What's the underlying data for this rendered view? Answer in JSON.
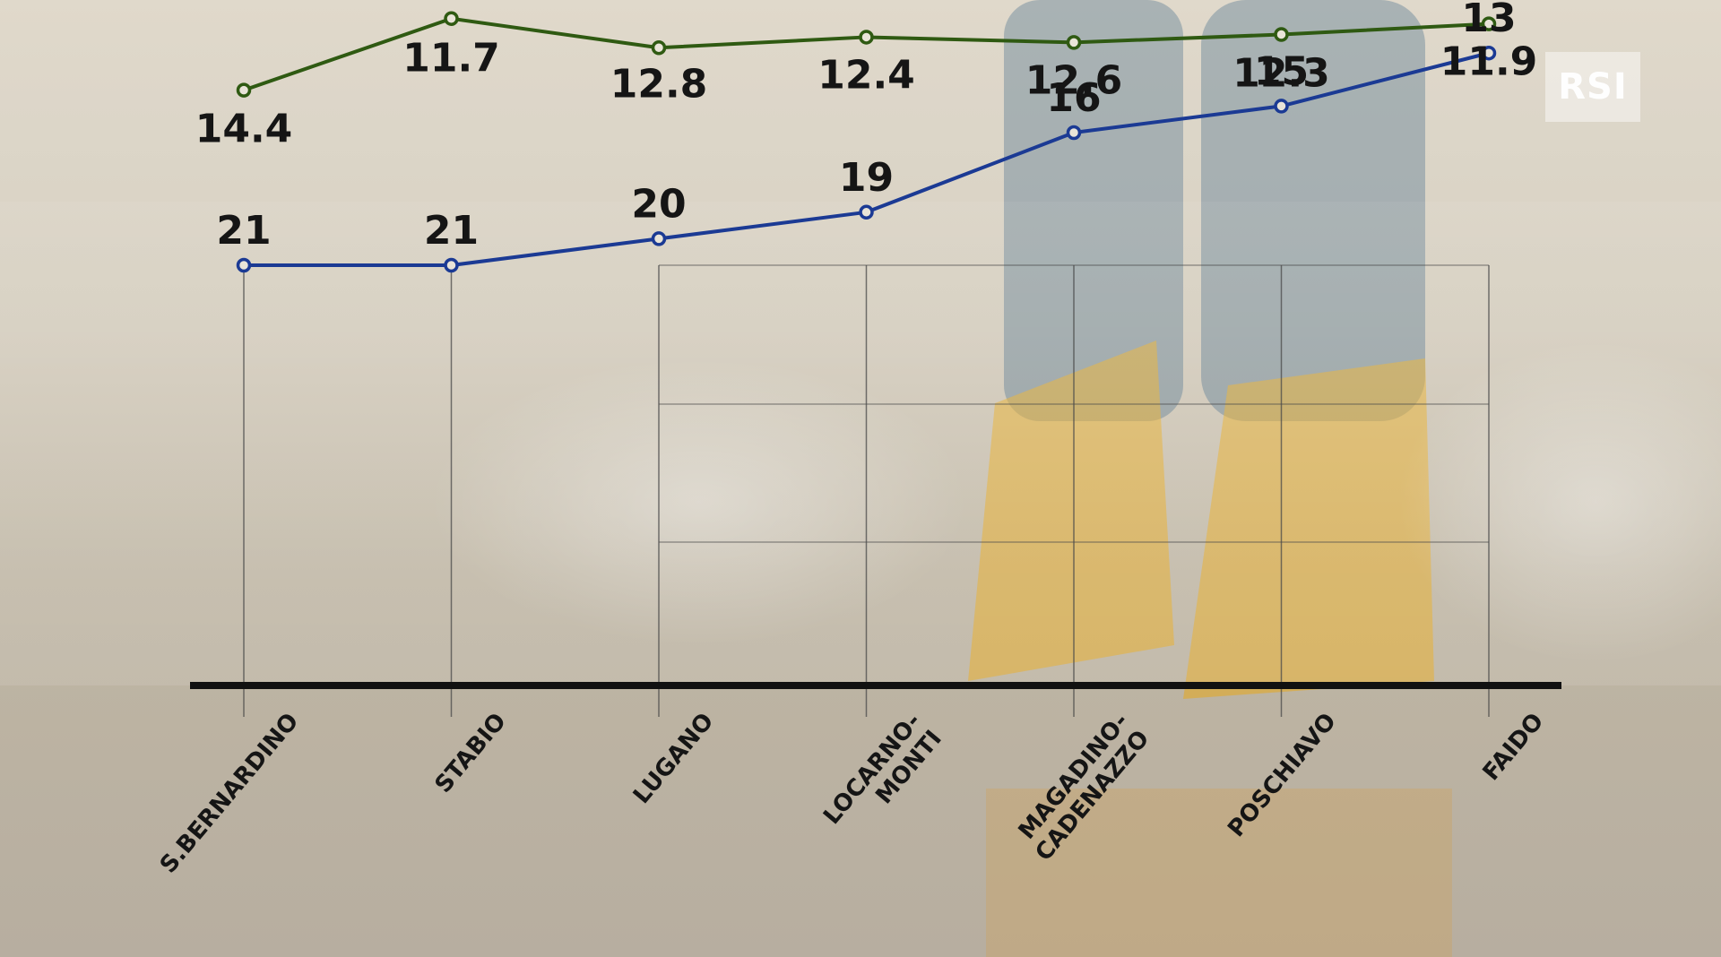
{
  "brand": {
    "logo_text": "RSI"
  },
  "colors": {
    "series_blue": "#1b3a94",
    "series_green": "#2f5a12",
    "axis": "#111111",
    "grid": "#4a4a4a"
  },
  "chart_data": {
    "type": "line",
    "title": "",
    "xlabel": "",
    "ylabel": "",
    "categories": [
      [
        "S.BERNARDINO"
      ],
      [
        "STABIO"
      ],
      [
        "LUGANO"
      ],
      [
        "LOCARNO-",
        "MONTI"
      ],
      [
        "MAGADINO-",
        "CADENAZZO"
      ],
      [
        "POSCHIAVO"
      ],
      [
        "FAIDO"
      ]
    ],
    "series": [
      {
        "values": [
          21,
          21,
          20,
          19,
          16,
          15,
          13
        ],
        "labels": [
          "21",
          "21",
          "20",
          "19",
          "16",
          "15",
          "13"
        ]
      },
      {
        "values": [
          14.4,
          11.7,
          12.8,
          12.4,
          12.6,
          12.3,
          11.9
        ],
        "labels": [
          "14.4",
          "11.7",
          "12.8",
          "12.4",
          "12.6",
          "12.3",
          "11.9"
        ]
      }
    ],
    "grid": true,
    "legend": "none"
  }
}
